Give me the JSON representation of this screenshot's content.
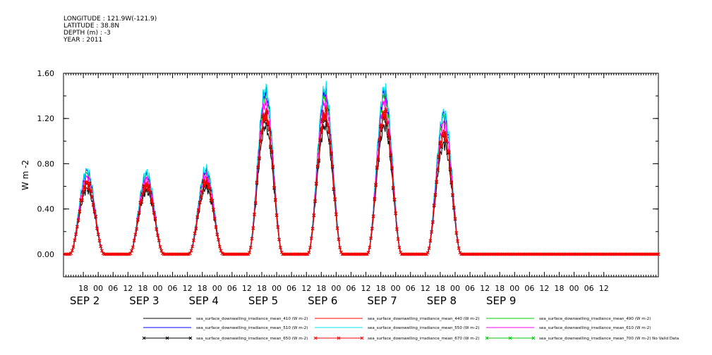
{
  "header": {
    "longitude": "LONGITUDE : 121.9W(-121.9)",
    "latitude": "LATITUDE : 38.8N",
    "depth": "DEPTH (m) : -3",
    "year": "YEAR : 2011"
  },
  "chart_data": {
    "type": "line",
    "title": "",
    "ylabel": "W m-2",
    "ylim": [
      -0.2,
      1.6
    ],
    "yticks": [
      0.0,
      0.4,
      0.8,
      1.2,
      1.6
    ],
    "ytick_labels": [
      "0.00",
      "0.40",
      "0.80",
      "1.20",
      "1.60"
    ],
    "xlim_hours": [
      10,
      250
    ],
    "xtick_labels": [
      {
        "h": 18,
        "text": "18"
      },
      {
        "h": 24,
        "text": "00"
      },
      {
        "h": 30,
        "text": "06"
      },
      {
        "h": 36,
        "text": "12"
      },
      {
        "h": 42,
        "text": "18"
      },
      {
        "h": 48,
        "text": "00"
      },
      {
        "h": 54,
        "text": "06"
      },
      {
        "h": 60,
        "text": "12"
      },
      {
        "h": 66,
        "text": "18"
      },
      {
        "h": 72,
        "text": "00"
      },
      {
        "h": 78,
        "text": "06"
      },
      {
        "h": 84,
        "text": "12"
      },
      {
        "h": 90,
        "text": "18"
      },
      {
        "h": 96,
        "text": "00"
      },
      {
        "h": 102,
        "text": "06"
      },
      {
        "h": 108,
        "text": "12"
      },
      {
        "h": 114,
        "text": "18"
      },
      {
        "h": 120,
        "text": "00"
      },
      {
        "h": 126,
        "text": "06"
      },
      {
        "h": 132,
        "text": "12"
      },
      {
        "h": 138,
        "text": "18"
      },
      {
        "h": 144,
        "text": "00"
      },
      {
        "h": 150,
        "text": "06"
      },
      {
        "h": 156,
        "text": "12"
      },
      {
        "h": 162,
        "text": "18"
      },
      {
        "h": 168,
        "text": "00"
      },
      {
        "h": 174,
        "text": "06"
      },
      {
        "h": 180,
        "text": "12"
      },
      {
        "h": 186,
        "text": "18"
      },
      {
        "h": 192,
        "text": "00"
      },
      {
        "h": 198,
        "text": "06"
      },
      {
        "h": 204,
        "text": "12"
      },
      {
        "h": 210,
        "text": "18"
      },
      {
        "h": 216,
        "text": "00"
      },
      {
        "h": 222,
        "text": "06"
      },
      {
        "h": 228,
        "text": "12"
      }
    ],
    "day_labels": [
      {
        "h": 18,
        "text": "SEP  2"
      },
      {
        "h": 42,
        "text": "SEP  3"
      },
      {
        "h": 66,
        "text": "SEP  4"
      },
      {
        "h": 90,
        "text": "SEP  5"
      },
      {
        "h": 114,
        "text": "SEP  6"
      },
      {
        "h": 138,
        "text": "SEP  7"
      },
      {
        "h": 162,
        "text": "SEP  8"
      },
      {
        "h": 186,
        "text": "SEP  9"
      }
    ],
    "day_peaks": [
      {
        "day": "SEP 2",
        "center_h": 19.5,
        "peak_650": 0.62
      },
      {
        "day": "SEP 3",
        "center_h": 43.5,
        "peak_650": 0.6
      },
      {
        "day": "SEP 4",
        "center_h": 67.5,
        "peak_650": 0.63
      },
      {
        "day": "SEP 5",
        "center_h": 91.5,
        "peak_650": 1.22
      },
      {
        "day": "SEP 6",
        "center_h": 115.5,
        "peak_650": 1.22
      },
      {
        "day": "SEP 7",
        "center_h": 139.5,
        "peak_650": 1.22
      },
      {
        "day": "SEP 8",
        "center_h": 163.5,
        "peak_650": 1.05
      }
    ],
    "series": [
      {
        "name": "sea_surface_downwelling_irradiance_mean_410 (W m-2)",
        "color": "#000000",
        "scale": 0.93,
        "marker": "none"
      },
      {
        "name": "sea_surface_downwelling_irradiance_mean_440 (W m-2)",
        "color": "#ff0000",
        "scale": 1.03,
        "marker": "none"
      },
      {
        "name": "sea_surface_downwelling_irradiance_mean_490 (W m-2)",
        "color": "#00cc00",
        "scale": 1.15,
        "marker": "none"
      },
      {
        "name": "sea_surface_downwelling_irradiance_mean_510 (W m-2)",
        "color": "#0000ff",
        "scale": 1.18,
        "marker": "none"
      },
      {
        "name": "sea_surface_downwelling_irradiance_mean_550 (W m-2)",
        "color": "#00e5ee",
        "scale": 1.2,
        "marker": "none"
      },
      {
        "name": "sea_surface_downwelling_irradiance_mean_610 (W m-2)",
        "color": "#ff00ff",
        "scale": 1.1,
        "marker": "none"
      },
      {
        "name": "sea_surface_downwelling_irradiance_mean_650 (W m-2)",
        "color": "#000000",
        "scale": 1.0,
        "marker": "x"
      },
      {
        "name": "sea_surface_downwelling_irradiance_mean_670 (W m-2)",
        "color": "#ff0000",
        "scale": 1.01,
        "marker": "x"
      },
      {
        "name": "sea_surface_downwelling_irradiance_mean_700 (W m-2) No Valid Data",
        "color": "#00cc00",
        "scale": 0,
        "marker": "x"
      }
    ]
  }
}
